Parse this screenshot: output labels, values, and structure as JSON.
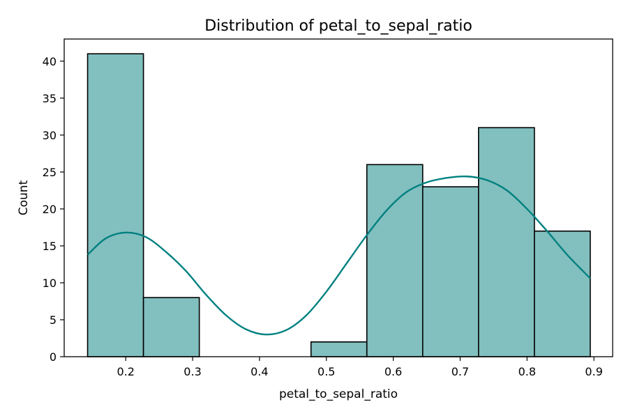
{
  "chart_data": {
    "type": "histogram",
    "title": "Distribution of petal_to_sepal_ratio",
    "xlabel": "petal_to_sepal_ratio",
    "ylabel": "Count",
    "xlim": [
      0.108,
      0.928
    ],
    "ylim": [
      0,
      43
    ],
    "xticks": [
      0.2,
      0.3,
      0.4,
      0.5,
      0.6,
      0.7,
      0.8,
      0.9
    ],
    "xtick_labels": [
      "0.2",
      "0.3",
      "0.4",
      "0.5",
      "0.6",
      "0.7",
      "0.8",
      "0.9"
    ],
    "yticks": [
      0,
      5,
      10,
      15,
      20,
      25,
      30,
      35,
      40
    ],
    "ytick_labels": [
      "0",
      "5",
      "10",
      "15",
      "20",
      "25",
      "30",
      "35",
      "40"
    ],
    "bins": [
      {
        "x0": 0.143,
        "x1": 0.2265,
        "count": 41
      },
      {
        "x0": 0.2265,
        "x1": 0.31,
        "count": 8
      },
      {
        "x0": 0.31,
        "x1": 0.3935,
        "count": 0
      },
      {
        "x0": 0.3935,
        "x1": 0.477,
        "count": 0
      },
      {
        "x0": 0.477,
        "x1": 0.5605,
        "count": 2
      },
      {
        "x0": 0.5605,
        "x1": 0.644,
        "count": 26
      },
      {
        "x0": 0.644,
        "x1": 0.7275,
        "count": 23
      },
      {
        "x0": 0.7275,
        "x1": 0.811,
        "count": 31
      },
      {
        "x0": 0.811,
        "x1": 0.8945,
        "count": 17
      }
    ],
    "kde": {
      "x": [
        0.143,
        0.17,
        0.2,
        0.23,
        0.26,
        0.29,
        0.32,
        0.35,
        0.38,
        0.41,
        0.44,
        0.47,
        0.5,
        0.53,
        0.56,
        0.59,
        0.62,
        0.65,
        0.68,
        0.71,
        0.74,
        0.77,
        0.8,
        0.83,
        0.86,
        0.8945
      ],
      "y": [
        13.8,
        16.0,
        16.8,
        16.2,
        14.2,
        11.6,
        8.4,
        5.6,
        3.7,
        3.0,
        3.6,
        5.6,
        8.8,
        12.6,
        16.4,
        19.8,
        22.3,
        23.6,
        24.2,
        24.4,
        23.9,
        22.5,
        20.0,
        17.0,
        13.8,
        10.6
      ]
    },
    "colors": {
      "bar_fill": "#82bfbf",
      "bar_edge": "#000000",
      "kde_line": "#008080"
    },
    "grid": false
  }
}
